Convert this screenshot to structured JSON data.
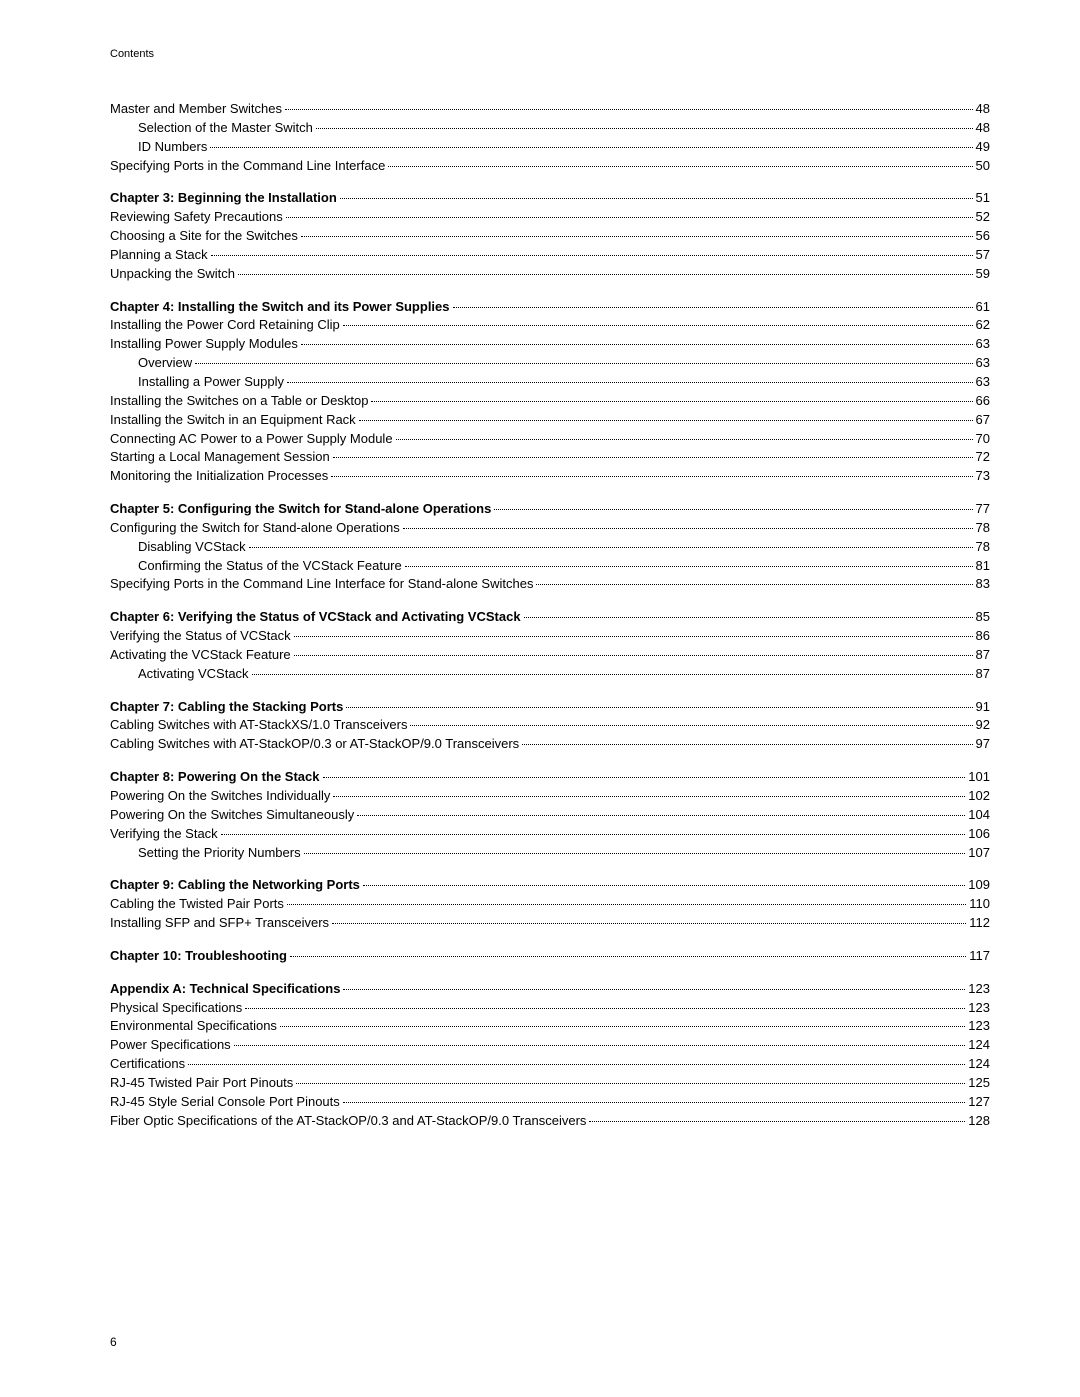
{
  "header": "Contents",
  "pageNumber": "6",
  "entries": [
    {
      "title": "Master and Member Switches",
      "page": "48",
      "indent": 0,
      "bold": false
    },
    {
      "title": "Selection of the Master Switch",
      "page": "48",
      "indent": 1,
      "bold": false
    },
    {
      "title": "ID Numbers",
      "page": "49",
      "indent": 1,
      "bold": false
    },
    {
      "title": "Specifying Ports in the Command Line Interface",
      "page": "50",
      "indent": 0,
      "bold": false
    },
    {
      "gap": true
    },
    {
      "title": "Chapter 3: Beginning the Installation",
      "page": "51",
      "indent": 0,
      "bold": true
    },
    {
      "title": "Reviewing Safety Precautions",
      "page": "52",
      "indent": 0,
      "bold": false
    },
    {
      "title": "Choosing a Site for the Switches",
      "page": "56",
      "indent": 0,
      "bold": false
    },
    {
      "title": "Planning a Stack",
      "page": "57",
      "indent": 0,
      "bold": false
    },
    {
      "title": "Unpacking the Switch",
      "page": "59",
      "indent": 0,
      "bold": false
    },
    {
      "gap": true
    },
    {
      "title": "Chapter 4: Installing the Switch and its Power Supplies",
      "page": "61",
      "indent": 0,
      "bold": true
    },
    {
      "title": "Installing the Power Cord Retaining Clip",
      "page": "62",
      "indent": 0,
      "bold": false
    },
    {
      "title": "Installing Power Supply Modules",
      "page": "63",
      "indent": 0,
      "bold": false
    },
    {
      "title": "Overview",
      "page": "63",
      "indent": 1,
      "bold": false
    },
    {
      "title": "Installing a Power Supply",
      "page": "63",
      "indent": 1,
      "bold": false
    },
    {
      "title": "Installing the Switches on a Table or Desktop",
      "page": "66",
      "indent": 0,
      "bold": false
    },
    {
      "title": "Installing the Switch in an Equipment Rack",
      "page": "67",
      "indent": 0,
      "bold": false
    },
    {
      "title": "Connecting AC Power to a Power Supply Module",
      "page": "70",
      "indent": 0,
      "bold": false
    },
    {
      "title": "Starting a Local Management Session",
      "page": "72",
      "indent": 0,
      "bold": false
    },
    {
      "title": "Monitoring the Initialization Processes",
      "page": "73",
      "indent": 0,
      "bold": false
    },
    {
      "gap": true
    },
    {
      "title": "Chapter 5: Configuring the Switch for Stand-alone Operations",
      "page": "77",
      "indent": 0,
      "bold": true
    },
    {
      "title": "Configuring the Switch for Stand-alone Operations",
      "page": "78",
      "indent": 0,
      "bold": false
    },
    {
      "title": "Disabling VCStack",
      "page": "78",
      "indent": 1,
      "bold": false
    },
    {
      "title": "Confirming the Status of the VCStack Feature",
      "page": "81",
      "indent": 1,
      "bold": false
    },
    {
      "title": "Specifying Ports in the Command Line Interface for Stand-alone Switches",
      "page": "83",
      "indent": 0,
      "bold": false
    },
    {
      "gap": true
    },
    {
      "title": "Chapter 6: Verifying the Status of VCStack and Activating VCStack",
      "page": "85",
      "indent": 0,
      "bold": true
    },
    {
      "title": "Verifying the Status of VCStack",
      "page": "86",
      "indent": 0,
      "bold": false
    },
    {
      "title": "Activating the VCStack Feature",
      "page": "87",
      "indent": 0,
      "bold": false
    },
    {
      "title": "Activating VCStack",
      "page": "87",
      "indent": 1,
      "bold": false
    },
    {
      "gap": true
    },
    {
      "title": "Chapter 7: Cabling the Stacking Ports",
      "page": "91",
      "indent": 0,
      "bold": true
    },
    {
      "title": "Cabling Switches with AT-StackXS/1.0 Transceivers",
      "page": "92",
      "indent": 0,
      "bold": false
    },
    {
      "title": "Cabling Switches with AT-StackOP/0.3 or AT-StackOP/9.0 Transceivers",
      "page": "97",
      "indent": 0,
      "bold": false
    },
    {
      "gap": true
    },
    {
      "title": "Chapter 8: Powering On the Stack",
      "page": "101",
      "indent": 0,
      "bold": true
    },
    {
      "title": "Powering On the Switches Individually",
      "page": "102",
      "indent": 0,
      "bold": false
    },
    {
      "title": "Powering On the Switches Simultaneously",
      "page": "104",
      "indent": 0,
      "bold": false
    },
    {
      "title": "Verifying the Stack",
      "page": "106",
      "indent": 0,
      "bold": false
    },
    {
      "title": "Setting the Priority Numbers",
      "page": "107",
      "indent": 1,
      "bold": false
    },
    {
      "gap": true
    },
    {
      "title": "Chapter 9: Cabling the Networking Ports",
      "page": "109",
      "indent": 0,
      "bold": true
    },
    {
      "title": "Cabling the Twisted Pair Ports",
      "page": "110",
      "indent": 0,
      "bold": false
    },
    {
      "title": "Installing SFP and SFP+ Transceivers",
      "page": "112",
      "indent": 0,
      "bold": false
    },
    {
      "gap": true
    },
    {
      "title": "Chapter 10: Troubleshooting",
      "page": "117",
      "indent": 0,
      "bold": true
    },
    {
      "gap": true
    },
    {
      "title": "Appendix A: Technical Specifications",
      "page": "123",
      "indent": 0,
      "bold": true
    },
    {
      "title": "Physical Specifications",
      "page": "123",
      "indent": 0,
      "bold": false
    },
    {
      "title": "Environmental Specifications",
      "page": "123",
      "indent": 0,
      "bold": false
    },
    {
      "title": "Power Specifications",
      "page": "124",
      "indent": 0,
      "bold": false
    },
    {
      "title": "Certifications",
      "page": "124",
      "indent": 0,
      "bold": false
    },
    {
      "title": "RJ-45 Twisted Pair Port Pinouts",
      "page": "125",
      "indent": 0,
      "bold": false
    },
    {
      "title": "RJ-45 Style Serial Console Port Pinouts",
      "page": "127",
      "indent": 0,
      "bold": false
    },
    {
      "title": "Fiber Optic Specifications of the AT-StackOP/0.3 and AT-StackOP/9.0 Transceivers",
      "page": "128",
      "indent": 0,
      "bold": false
    }
  ]
}
